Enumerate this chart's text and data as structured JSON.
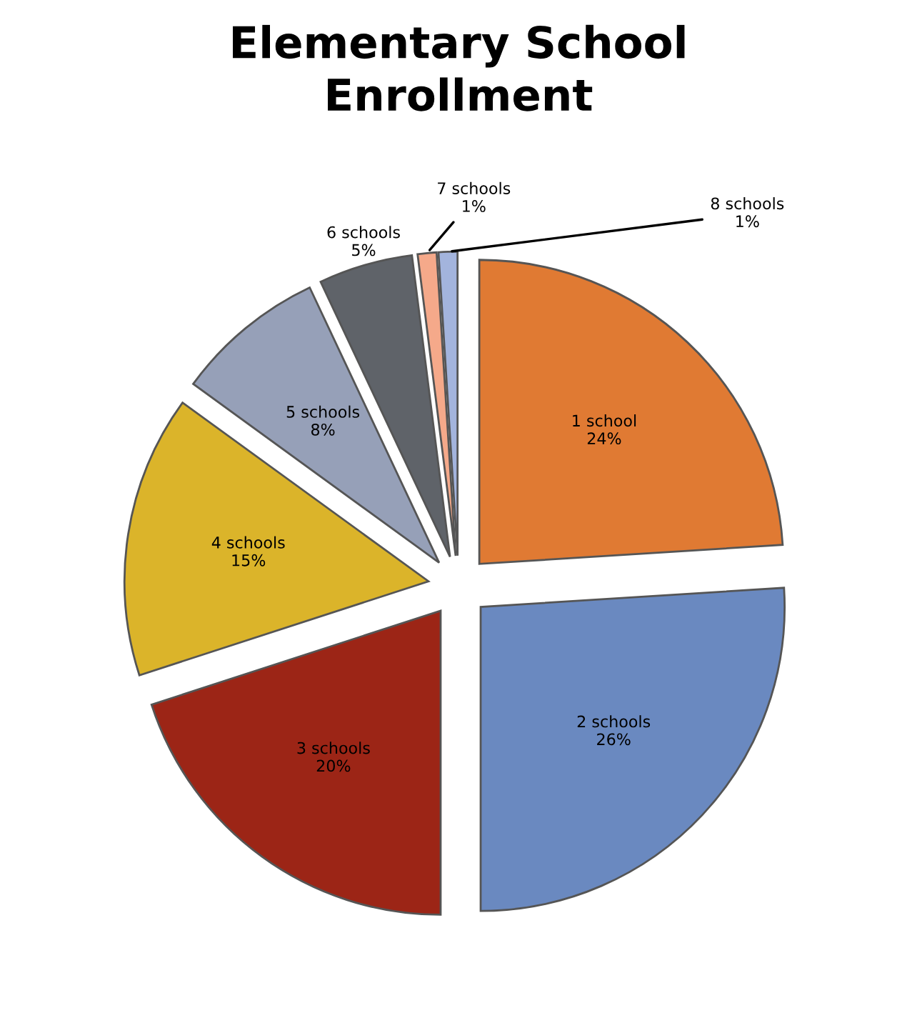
{
  "chart_data": {
    "type": "pie",
    "title": "Elementary School\nEnrollment",
    "categories": [
      "1 school",
      "2 schools",
      "3 schools",
      "4 schools",
      "5 schools",
      "6 schools",
      "7 schools",
      "8 schools"
    ],
    "values": [
      24,
      26,
      20,
      15,
      8,
      5,
      1,
      1
    ],
    "value_labels": [
      "24%",
      "26%",
      "20%",
      "15%",
      "8%",
      "5%",
      "1%",
      "1%"
    ],
    "colors": [
      "#e07a33",
      "#6a89c0",
      "#9c2516",
      "#dbb42a",
      "#96a0b8",
      "#5f6369",
      "#f5a98a",
      "#a3b4dd"
    ],
    "legend": false
  }
}
